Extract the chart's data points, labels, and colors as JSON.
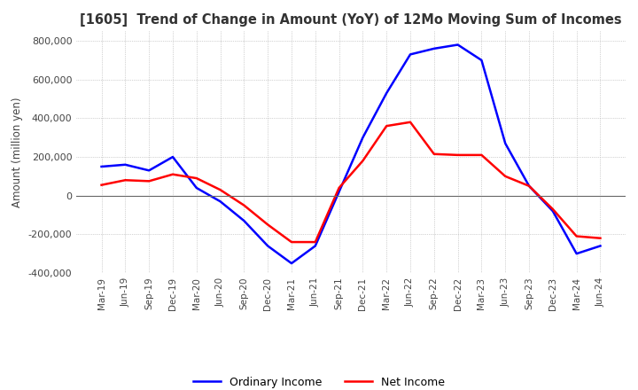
{
  "title": "[1605]  Trend of Change in Amount (YoY) of 12Mo Moving Sum of Incomes",
  "ylabel": "Amount (million yen)",
  "ylim": [
    -400000,
    850000
  ],
  "yticks": [
    -400000,
    -200000,
    0,
    200000,
    400000,
    600000,
    800000
  ],
  "background_color": "#ffffff",
  "grid_color": "#aaaaaa",
  "ordinary_income_color": "#0000ff",
  "net_income_color": "#ff0000",
  "x_labels": [
    "Mar-19",
    "Jun-19",
    "Sep-19",
    "Dec-19",
    "Mar-20",
    "Jun-20",
    "Sep-20",
    "Dec-20",
    "Mar-21",
    "Jun-21",
    "Sep-21",
    "Dec-21",
    "Mar-22",
    "Jun-22",
    "Sep-22",
    "Dec-22",
    "Mar-23",
    "Jun-23",
    "Sep-23",
    "Dec-23",
    "Mar-24",
    "Jun-24"
  ],
  "ordinary_income": [
    150000,
    160000,
    130000,
    200000,
    40000,
    -30000,
    -130000,
    -260000,
    -350000,
    -260000,
    20000,
    300000,
    530000,
    730000,
    760000,
    780000,
    700000,
    270000,
    50000,
    -80000,
    -300000,
    -260000
  ],
  "net_income": [
    55000,
    80000,
    75000,
    110000,
    90000,
    30000,
    -50000,
    -150000,
    -240000,
    -240000,
    40000,
    180000,
    360000,
    380000,
    215000,
    210000,
    210000,
    100000,
    50000,
    -70000,
    -210000,
    -220000
  ]
}
